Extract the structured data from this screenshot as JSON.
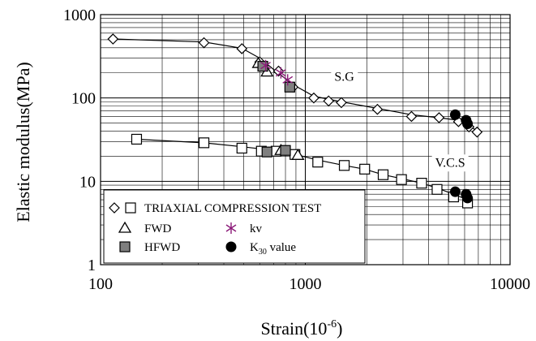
{
  "chart_data": {
    "type": "scatter",
    "x_scale": "log",
    "y_scale": "log",
    "xlim": [
      100,
      10000
    ],
    "ylim": [
      1,
      1000
    ],
    "grid": true,
    "xlabel": {
      "base": "Strain(10",
      "exponent": "-6",
      "suffix": ")"
    },
    "ylabel": "Elastic modulus(MPa)",
    "x_ticks": [
      {
        "value": 100,
        "label": "100"
      },
      {
        "value": 1000,
        "label": "1000"
      },
      {
        "value": 10000,
        "label": "10000"
      }
    ],
    "y_ticks": [
      {
        "value": 1,
        "label": "1"
      },
      {
        "value": 10,
        "label": "10"
      },
      {
        "value": 100,
        "label": "100"
      },
      {
        "value": 1000,
        "label": "1000"
      }
    ],
    "annotations": [
      {
        "text": "S.G",
        "x": 1550,
        "y": 160
      },
      {
        "text": "V.C.S",
        "x": 5100,
        "y": 15
      }
    ],
    "legend": {
      "placement": "bottom-left",
      "entries": [
        {
          "text": "TRIAXIAL COMPRESSION TEST",
          "symbols": [
            "diamond-open",
            "square-open"
          ]
        },
        {
          "text": "FWD",
          "symbols": [
            "triangle-open"
          ]
        },
        {
          "text": "kv",
          "symbols": [
            "asterisk"
          ]
        },
        {
          "text": "HFWD",
          "symbols": [
            "square-gray"
          ]
        },
        {
          "text": "K30 value",
          "symbols": [
            "circle-black"
          ]
        }
      ]
    },
    "series": [
      {
        "name": "TRIAXIAL COMPRESSION TEST",
        "marker": "diamond-open",
        "points": [
          [
            115,
            510
          ],
          [
            320,
            460
          ],
          [
            490,
            390
          ],
          [
            600,
            270
          ],
          [
            740,
            210
          ],
          [
            870,
            135
          ],
          [
            1100,
            100
          ],
          [
            1300,
            92
          ],
          [
            1500,
            88
          ],
          [
            2250,
            73
          ],
          [
            3300,
            60
          ],
          [
            4500,
            58
          ],
          [
            5600,
            52
          ],
          [
            6300,
            45
          ],
          [
            6900,
            39
          ]
        ]
      },
      {
        "name": "TRIAXIAL COMPRESSION TEST",
        "marker": "square-open",
        "points": [
          [
            150,
            32
          ],
          [
            320,
            29
          ],
          [
            490,
            25
          ],
          [
            610,
            23
          ],
          [
            720,
            23
          ],
          [
            890,
            21
          ],
          [
            1150,
            17
          ],
          [
            1550,
            15.5
          ],
          [
            1950,
            14
          ],
          [
            2400,
            12
          ],
          [
            2950,
            10.5
          ],
          [
            3700,
            9.5
          ],
          [
            4400,
            8
          ],
          [
            5300,
            6.5
          ],
          [
            6200,
            5.5
          ]
        ]
      },
      {
        "name": "FWD",
        "marker": "triangle-open",
        "points": [
          [
            590,
            260
          ],
          [
            650,
            205
          ],
          [
            760,
            23.5
          ],
          [
            920,
            20.5
          ]
        ]
      },
      {
        "name": "HFWD",
        "marker": "square-gray",
        "points": [
          [
            620,
            240
          ],
          [
            840,
            135
          ],
          [
            650,
            22.5
          ],
          [
            800,
            23.5
          ]
        ]
      },
      {
        "name": "kv",
        "marker": "asterisk",
        "color": "#8b1a78",
        "points": [
          [
            640,
            245
          ],
          [
            760,
            200
          ],
          [
            820,
            165
          ]
        ]
      },
      {
        "name": "K30 value",
        "marker": "circle-black",
        "points": [
          [
            5400,
            63
          ],
          [
            6100,
            54
          ],
          [
            6200,
            49
          ],
          [
            5400,
            7.5
          ],
          [
            6100,
            7
          ],
          [
            6200,
            6.3
          ]
        ]
      }
    ],
    "fit_curves": [
      {
        "name": "S.G",
        "points": [
          [
            115,
            510
          ],
          [
            320,
            470
          ],
          [
            490,
            395
          ],
          [
            600,
            300
          ],
          [
            700,
            220
          ],
          [
            870,
            145
          ],
          [
            1100,
            105
          ],
          [
            1500,
            90
          ],
          [
            2250,
            75
          ],
          [
            3300,
            63
          ],
          [
            4500,
            58
          ],
          [
            5600,
            54
          ],
          [
            6300,
            47
          ],
          [
            6900,
            40
          ]
        ]
      },
      {
        "name": "V.C.S",
        "points": [
          [
            150,
            32
          ],
          [
            320,
            29
          ],
          [
            490,
            26
          ],
          [
            700,
            23.5
          ],
          [
            900,
            21
          ],
          [
            1150,
            18
          ],
          [
            1550,
            15.5
          ],
          [
            1950,
            14
          ],
          [
            2400,
            12
          ],
          [
            2950,
            10.8
          ],
          [
            3700,
            9.5
          ],
          [
            4400,
            8.3
          ],
          [
            5300,
            7
          ],
          [
            6200,
            6
          ]
        ]
      }
    ]
  }
}
